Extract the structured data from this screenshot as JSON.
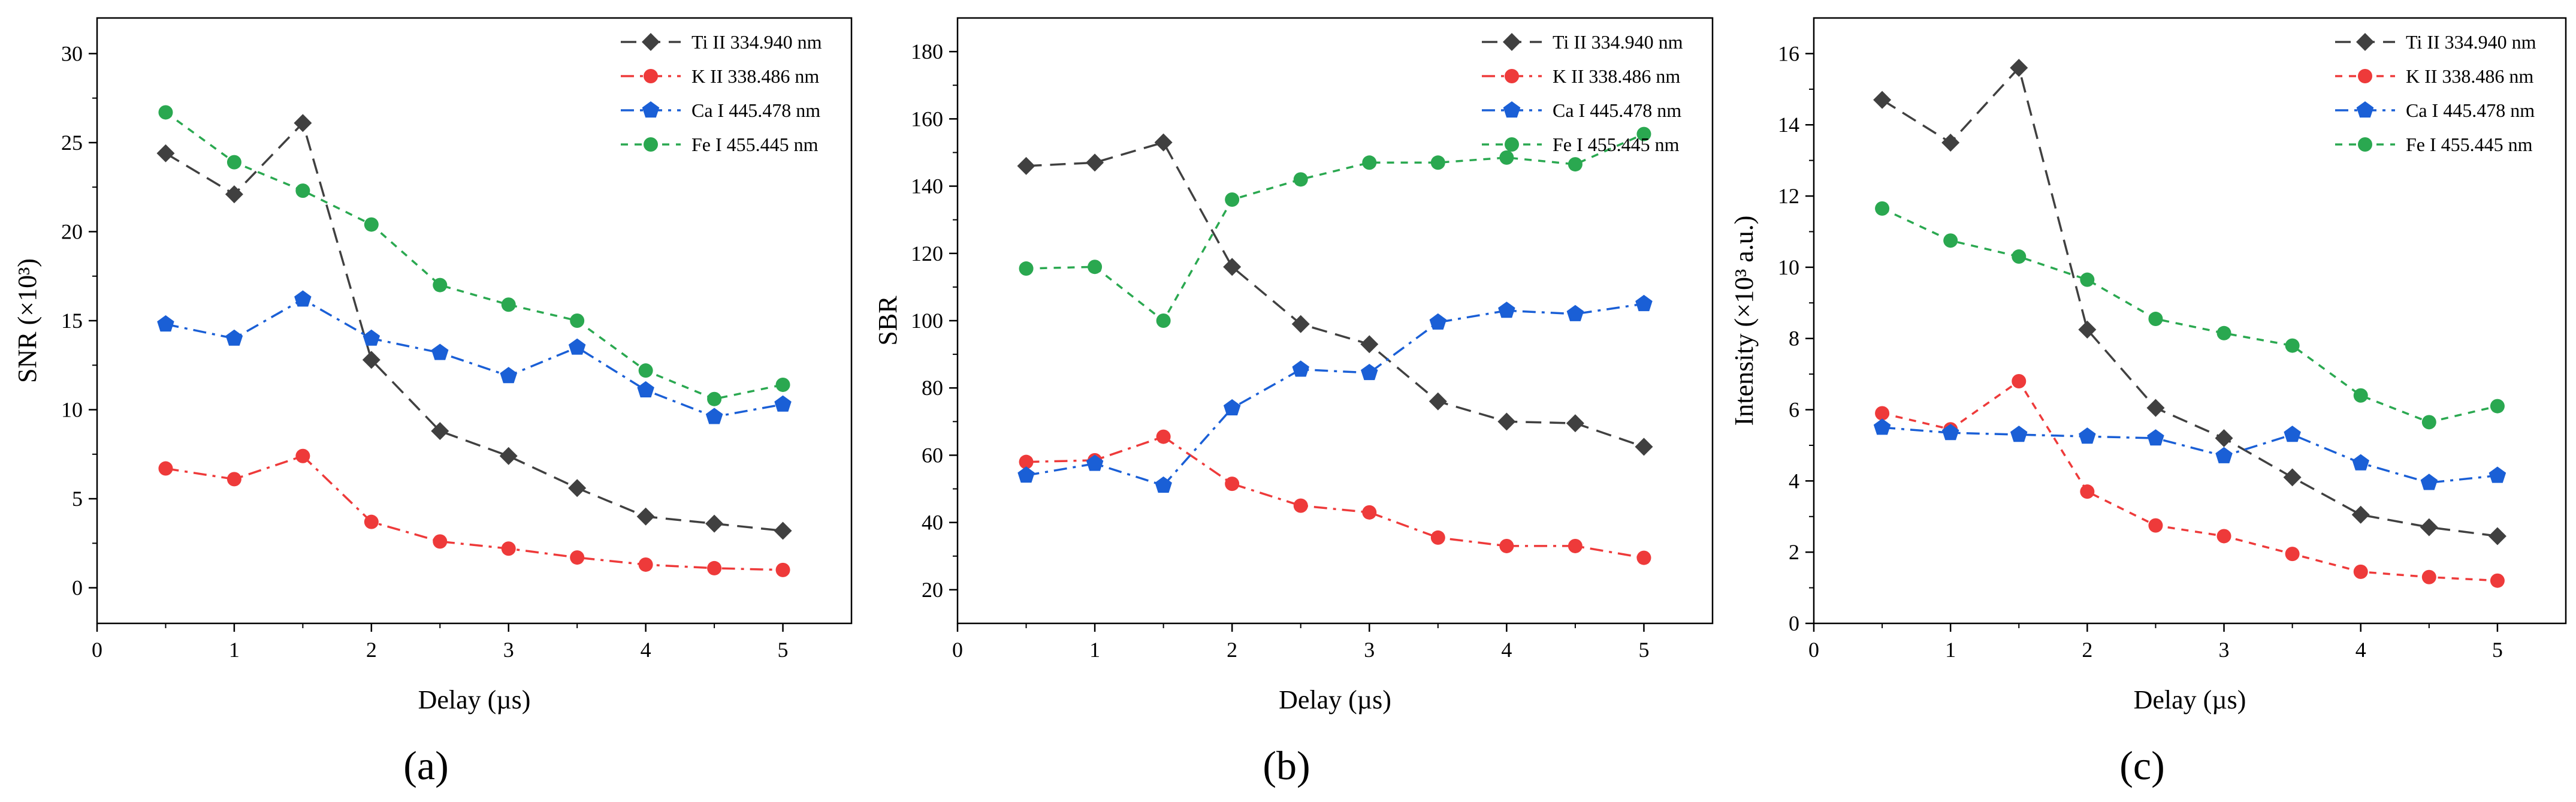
{
  "figure_labels": {
    "a": "(a)",
    "b": "(b)",
    "c": "(c)"
  },
  "colors": {
    "ti": "#404040",
    "k": "#ee3a3a",
    "ca": "#1a5fd6",
    "fe": "#2aa850"
  },
  "chart_data": [
    {
      "id": "a",
      "type": "line",
      "title": "",
      "xlabel": "Delay (µs)",
      "ylabel": "SNR (×10³)",
      "xlim": [
        0,
        5.5
      ],
      "ylim": [
        -2,
        32
      ],
      "xticks": [
        0,
        1,
        2,
        3,
        4,
        5
      ],
      "yticks": [
        0,
        5,
        10,
        15,
        20,
        25,
        30
      ],
      "legend": "top-right",
      "x": [
        0.5,
        1,
        1.5,
        2,
        2.5,
        3,
        3.5,
        4,
        4.5,
        5
      ],
      "series": [
        {
          "name": "Ti II 334.940 nm",
          "key": "ti",
          "marker": "diamond",
          "dash": "long-dash",
          "values": [
            24.4,
            22.1,
            26.1,
            12.8,
            8.8,
            7.4,
            5.6,
            4.0,
            3.6,
            3.2
          ]
        },
        {
          "name": "K II 338.486 nm",
          "key": "k",
          "marker": "circle",
          "dash": "dash-dot",
          "values": [
            6.7,
            6.1,
            7.4,
            3.7,
            2.6,
            2.2,
            1.7,
            1.3,
            1.1,
            1.0
          ]
        },
        {
          "name": "Ca I 445.478 nm",
          "key": "ca",
          "marker": "pentagon",
          "dash": "dash-dot",
          "values": [
            14.8,
            14.0,
            16.2,
            14.0,
            13.2,
            11.9,
            13.5,
            11.1,
            9.6,
            10.3
          ]
        },
        {
          "name": "Fe I 455.445 nm",
          "key": "fe",
          "marker": "circle",
          "dash": "short-dash",
          "values": [
            26.7,
            23.9,
            22.3,
            20.4,
            17.0,
            15.9,
            15.0,
            12.2,
            10.6,
            11.4
          ]
        }
      ]
    },
    {
      "id": "b",
      "type": "line",
      "title": "",
      "xlabel": "Delay (µs)",
      "ylabel": "SBR",
      "xlim": [
        0,
        5.5
      ],
      "ylim": [
        10,
        190
      ],
      "xticks": [
        0,
        1,
        2,
        3,
        4,
        5
      ],
      "yticks": [
        20,
        40,
        60,
        80,
        100,
        120,
        140,
        160,
        180
      ],
      "legend": "top-right",
      "x": [
        0.5,
        1,
        1.5,
        2,
        2.5,
        3,
        3.5,
        4,
        4.5,
        5
      ],
      "series": [
        {
          "name": "Ti II 334.940 nm",
          "key": "ti",
          "marker": "diamond",
          "dash": "long-dash",
          "values": [
            146,
            147,
            153,
            116,
            99,
            93,
            76,
            70,
            69.5,
            62.5
          ]
        },
        {
          "name": "K II 338.486 nm",
          "key": "k",
          "marker": "circle",
          "dash": "dash-dot",
          "values": [
            58,
            58.5,
            65.5,
            51.5,
            45,
            43,
            35.5,
            33,
            33,
            29.5
          ]
        },
        {
          "name": "Ca I 445.478 nm",
          "key": "ca",
          "marker": "pentagon",
          "dash": "dash-dot",
          "values": [
            54,
            57.5,
            51,
            74,
            85.5,
            84.5,
            99.5,
            103,
            102,
            105
          ]
        },
        {
          "name": "Fe I 455.445 nm",
          "key": "fe",
          "marker": "circle",
          "dash": "short-dash",
          "values": [
            115.5,
            116,
            100,
            136,
            142,
            147,
            147,
            148.5,
            146.5,
            155.5
          ]
        }
      ]
    },
    {
      "id": "c",
      "type": "line",
      "title": "",
      "xlabel": "Delay (µs)",
      "ylabel": "Intensity (×10³ a.u.)",
      "xlim": [
        0,
        5.5
      ],
      "ylim": [
        0,
        17
      ],
      "xticks": [
        0,
        1,
        2,
        3,
        4,
        5
      ],
      "yticks": [
        0,
        2,
        4,
        6,
        8,
        10,
        12,
        14,
        16
      ],
      "legend": "top-right",
      "x": [
        0.5,
        1,
        1.5,
        2,
        2.5,
        3,
        3.5,
        4,
        4.5,
        5
      ],
      "series": [
        {
          "name": "Ti II 334.940 nm",
          "key": "ti",
          "marker": "diamond",
          "dash": "long-dash",
          "values": [
            14.7,
            13.5,
            15.6,
            8.25,
            6.05,
            5.2,
            4.1,
            3.05,
            2.7,
            2.45
          ]
        },
        {
          "name": "K II 338.486 nm",
          "key": "k",
          "marker": "circle",
          "dash": "short-dash",
          "values": [
            5.9,
            5.45,
            6.8,
            3.7,
            2.75,
            2.45,
            1.95,
            1.45,
            1.3,
            1.2
          ]
        },
        {
          "name": "Ca I 445.478 nm",
          "key": "ca",
          "marker": "pentagon",
          "dash": "dash-dot",
          "values": [
            5.5,
            5.35,
            5.3,
            5.25,
            5.2,
            4.7,
            5.3,
            4.5,
            3.95,
            4.15
          ]
        },
        {
          "name": "Fe I 455.445 nm",
          "key": "fe",
          "marker": "circle",
          "dash": "short-dash",
          "values": [
            11.65,
            10.75,
            10.3,
            9.65,
            8.55,
            8.15,
            7.8,
            6.4,
            5.65,
            6.1
          ]
        }
      ]
    }
  ]
}
